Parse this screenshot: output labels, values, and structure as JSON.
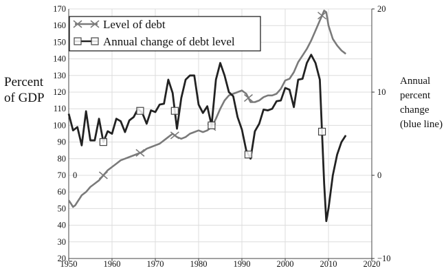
{
  "chart_data": {
    "type": "line",
    "title": "",
    "xlabel": "",
    "ylabel_left": [
      "Percent",
      "of GDP"
    ],
    "ylabel_right": [
      "Annual",
      "percent",
      "change",
      "(blue line)"
    ],
    "xlim": [
      1950,
      2020
    ],
    "ylim_left": [
      20,
      170
    ],
    "ylim_right": [
      -10,
      20
    ],
    "x_ticks": [
      "1950",
      "1960",
      "1970",
      "1980",
      "1990",
      "2000",
      "2010",
      "2020"
    ],
    "y_ticks_left": [
      "20",
      "30",
      "40",
      "50",
      "60",
      "70",
      "80",
      "90",
      "100",
      "110",
      "120",
      "130",
      "140",
      "150",
      "160",
      "170"
    ],
    "y_ticks_right": [
      "20",
      "10",
      "0",
      "−10"
    ],
    "zero_label": "0",
    "grid": true,
    "legend_position": "top-left",
    "series": [
      {
        "name": "Level of debt",
        "axis": "left",
        "color": "#7a7a7a",
        "marker": "x",
        "marker_x": [
          1958,
          1966.5,
          1974.5,
          1983,
          1991.5,
          2008.5
        ],
        "x": [
          1950,
          1950.5,
          1951,
          1951.5,
          1952,
          1952.5,
          1953,
          1954,
          1955,
          1956,
          1957,
          1958,
          1959,
          1960,
          1961,
          1962,
          1963,
          1964,
          1965,
          1966,
          1967,
          1968,
          1969,
          1970,
          1971,
          1972,
          1973,
          1974,
          1975,
          1976,
          1977,
          1978,
          1979,
          1980,
          1981,
          1982,
          1983,
          1984,
          1985,
          1986,
          1987,
          1988,
          1989,
          1990,
          1991,
          1992,
          1993,
          1994,
          1995,
          1996,
          1997,
          1998,
          1999,
          2000,
          2001,
          2002,
          2003,
          2004,
          2005,
          2006,
          2007,
          2008,
          2008.5,
          2009,
          2009.5,
          2010,
          2011,
          2012,
          2013,
          2014
        ],
        "values": [
          55,
          53,
          51,
          52,
          54,
          56,
          58,
          60,
          63,
          65,
          67,
          70,
          73,
          75,
          77,
          79,
          80,
          81,
          82,
          83,
          84,
          86,
          87,
          88,
          89,
          91,
          93,
          95,
          93,
          92,
          93,
          95,
          96,
          97,
          96,
          97,
          99,
          104,
          110,
          115,
          118,
          119,
          120,
          121,
          119,
          114,
          114,
          115,
          117,
          118,
          118,
          119,
          122,
          127,
          128,
          132,
          138,
          142,
          146,
          151,
          157,
          163,
          166,
          169,
          168,
          160,
          152,
          148,
          145,
          143
        ]
      },
      {
        "name": "Annual change of debt level",
        "axis": "right",
        "color": "#222222",
        "marker": "square",
        "marker_x": [
          1958,
          1966.5,
          1974.5,
          1983,
          1991.5,
          2008.5
        ],
        "x": [
          1950,
          1951,
          1952,
          1953,
          1954,
          1955,
          1956,
          1957,
          1958,
          1959,
          1960,
          1961,
          1962,
          1963,
          1964,
          1965,
          1966,
          1967,
          1968,
          1969,
          1970,
          1971,
          1972,
          1973,
          1974,
          1975,
          1976,
          1977,
          1978,
          1979,
          1980,
          1981,
          1982,
          1983,
          1984,
          1985,
          1986,
          1987,
          1988,
          1989,
          1990,
          1991,
          1992,
          1993,
          1994,
          1995,
          1996,
          1997,
          1998,
          1999,
          2000,
          2001,
          2002,
          2003,
          2004,
          2005,
          2006,
          2007,
          2008,
          2009,
          2009.5,
          2010,
          2011,
          2012,
          2013,
          2014
        ],
        "values": [
          7.4,
          5.4,
          5.8,
          3.6,
          7.7,
          4.2,
          4.2,
          6.8,
          4,
          5.3,
          5,
          6.8,
          6.5,
          5.2,
          6.6,
          7,
          8,
          7.5,
          6.2,
          7.8,
          7.6,
          8.5,
          8.6,
          11.5,
          9.9,
          5.6,
          9.3,
          11.5,
          12,
          12,
          8.5,
          7.5,
          8.3,
          6,
          11.5,
          13.5,
          12,
          10,
          9.5,
          7,
          5.5,
          3,
          2,
          5.3,
          6.2,
          7.9,
          7.8,
          8,
          8.9,
          9,
          10.5,
          10.3,
          8.2,
          11.5,
          11.6,
          13.5,
          14.5,
          13.5,
          11.5,
          -1,
          -5.5,
          -4,
          0,
          2.5,
          4,
          4.8
        ]
      }
    ]
  }
}
